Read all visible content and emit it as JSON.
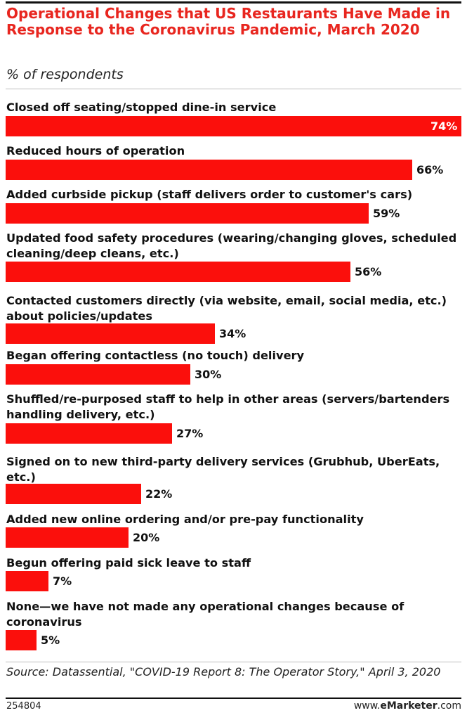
{
  "title": "Operational Changes that US Restaurants Have Made in Response to the Coronavirus Pandemic, March 2020",
  "subtitle": "% of respondents",
  "source": "Source: Datassential, \"COVID-19 Report 8: The Operator Story,\" April 3, 2020",
  "chart_id": "254804",
  "brand": {
    "prefix": "www.",
    "name": "eMarketer",
    "suffix": ".com"
  },
  "colors": {
    "bar": "#fb0f0c",
    "title": "#e8261f"
  },
  "chart_data": {
    "type": "bar",
    "orientation": "horizontal",
    "title": "Operational Changes that US Restaurants Have Made in Response to the Coronavirus Pandemic, March 2020",
    "subtitle": "% of respondents",
    "categories": [
      "Closed off seating/stopped dine-in service",
      "Reduced hours of operation",
      "Added curbside pickup (staff delivers order to customer's cars)",
      "Updated food safety procedures (wearing/changing gloves, scheduled cleaning/deep cleans, etc.)",
      "Contacted customers directly (via website, email, social media, etc.) about policies/updates",
      "Began offering contactless (no touch) delivery",
      "Shuffled/re-purposed staff to help in other areas (servers/bartenders handling delivery, etc.)",
      "Signed on to new third-party delivery services (Grubhub, UberEats, etc.)",
      "Added new online ordering and/or pre-pay functionality",
      "Begun offering paid sick leave to staff",
      "None—we have not made any operational changes because of coronavirus"
    ],
    "values": [
      74,
      66,
      59,
      56,
      34,
      30,
      27,
      22,
      20,
      7,
      5
    ],
    "value_labels": [
      "74%",
      "66%",
      "59%",
      "56%",
      "34%",
      "30%",
      "27%",
      "22%",
      "20%",
      "7%",
      "5%"
    ],
    "xlim": [
      0,
      74
    ],
    "grid": false,
    "legend": "none"
  }
}
